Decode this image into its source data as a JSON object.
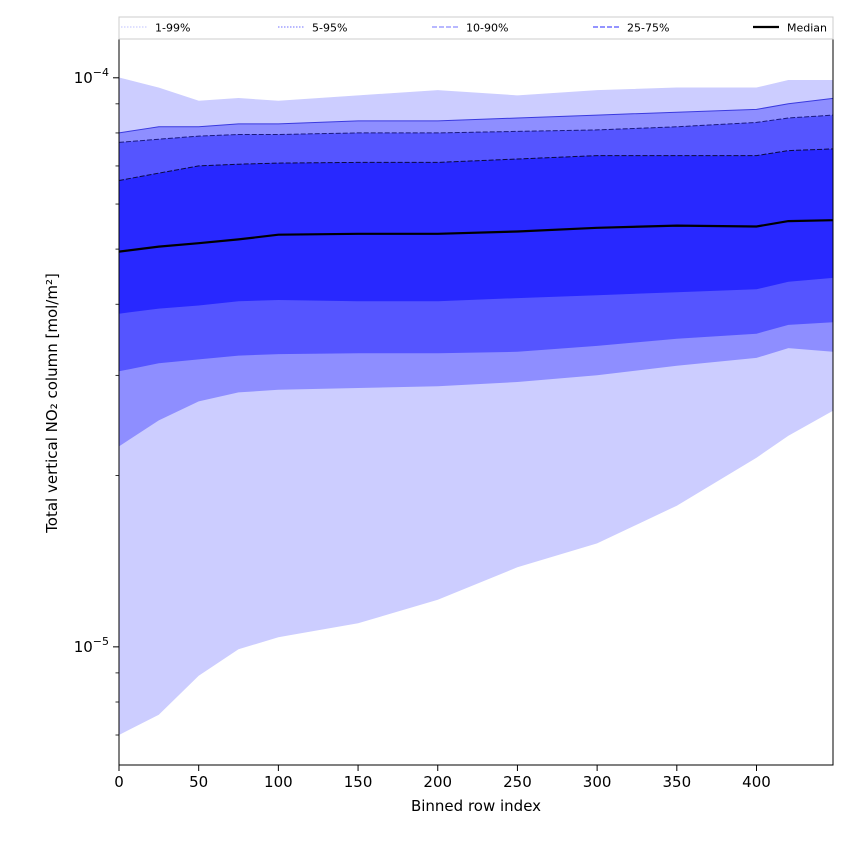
{
  "chart_data": {
    "type": "area",
    "xlabel": "Binned row index",
    "ylabel": "Total vertical NO₂ column [mol/m²]",
    "xlim": [
      0,
      448
    ],
    "ylim": [
      6.2e-06,
      0.000117
    ],
    "yscale": "log",
    "grid": false,
    "legend_position": "top, above plot, single row",
    "x_ticks": [
      0,
      50,
      100,
      150,
      200,
      250,
      300,
      350,
      400
    ],
    "y_major_ticks": [
      {
        "value": 1e-05,
        "base": "10",
        "exponent": "−5"
      },
      {
        "value": 0.0001,
        "base": "10",
        "exponent": "−4"
      }
    ],
    "x": [
      0,
      25,
      50,
      75,
      100,
      150,
      200,
      250,
      300,
      350,
      400,
      420,
      448
    ],
    "bands": [
      {
        "name": "1-99%",
        "color": "#cccdff",
        "line_color": "#cccdff",
        "lower": [
          7e-06,
          7.6e-06,
          8.9e-06,
          9.9e-06,
          1.04e-05,
          1.1e-05,
          1.21e-05,
          1.38e-05,
          1.52e-05,
          1.77e-05,
          2.15e-05,
          2.35e-05,
          2.6e-05
        ],
        "upper": [
          0.0001,
          9.6e-05,
          9.1e-05,
          9.2e-05,
          9.1e-05,
          9.3e-05,
          9.5e-05,
          9.3e-05,
          9.5e-05,
          9.6e-05,
          9.6e-05,
          9.9e-05,
          9.9e-05
        ]
      },
      {
        "name": "5-95%",
        "color": "#8e8eff",
        "line_color": "#3a3adf",
        "lower": [
          2.25e-05,
          2.5e-05,
          2.7e-05,
          2.8e-05,
          2.83e-05,
          2.85e-05,
          2.87e-05,
          2.92e-05,
          3e-05,
          3.12e-05,
          3.22e-05,
          3.35e-05,
          3.3e-05
        ],
        "upper": [
          8e-05,
          8.2e-05,
          8.2e-05,
          8.3e-05,
          8.3e-05,
          8.4e-05,
          8.4e-05,
          8.5e-05,
          8.6e-05,
          8.7e-05,
          8.8e-05,
          9e-05,
          9.2e-05
        ]
      },
      {
        "name": "10-90%",
        "color": "#5555ff",
        "line_color": "#1a1a80",
        "lower": [
          3.05e-05,
          3.15e-05,
          3.2e-05,
          3.25e-05,
          3.27e-05,
          3.28e-05,
          3.28e-05,
          3.3e-05,
          3.38e-05,
          3.48e-05,
          3.55e-05,
          3.68e-05,
          3.72e-05
        ],
        "upper": [
          7.7e-05,
          7.8e-05,
          7.9e-05,
          7.95e-05,
          7.95e-05,
          8e-05,
          8e-05,
          8.05e-05,
          8.1e-05,
          8.2e-05,
          8.35e-05,
          8.5e-05,
          8.6e-05
        ]
      },
      {
        "name": "25-75%",
        "color": "#2828ff",
        "line_color": "#0a0a40",
        "lower": [
          3.85e-05,
          3.93e-05,
          3.98e-05,
          4.05e-05,
          4.07e-05,
          4.05e-05,
          4.05e-05,
          4.1e-05,
          4.15e-05,
          4.2e-05,
          4.25e-05,
          4.38e-05,
          4.45e-05
        ],
        "upper": [
          6.6e-05,
          6.8e-05,
          7e-05,
          7.05e-05,
          7.08e-05,
          7.1e-05,
          7.1e-05,
          7.2e-05,
          7.3e-05,
          7.3e-05,
          7.3e-05,
          7.45e-05,
          7.5e-05
        ]
      }
    ],
    "median": {
      "name": "Median",
      "color": "#000000",
      "values": [
        4.95e-05,
        5.05e-05,
        5.12e-05,
        5.2e-05,
        5.3e-05,
        5.32e-05,
        5.32e-05,
        5.37e-05,
        5.45e-05,
        5.5e-05,
        5.48e-05,
        5.6e-05,
        5.62e-05
      ]
    },
    "legend": [
      {
        "label": "1-99%",
        "style": "dotted",
        "color": "#cccdff"
      },
      {
        "label": "5-95%",
        "style": "dotted",
        "color": "#8e8eff"
      },
      {
        "label": "10-90%",
        "style": "dashed",
        "color": "#8e8eff"
      },
      {
        "label": "25-75%",
        "style": "dashed",
        "color": "#5555ff"
      },
      {
        "label": "Median",
        "style": "solid",
        "color": "#000000"
      }
    ]
  }
}
